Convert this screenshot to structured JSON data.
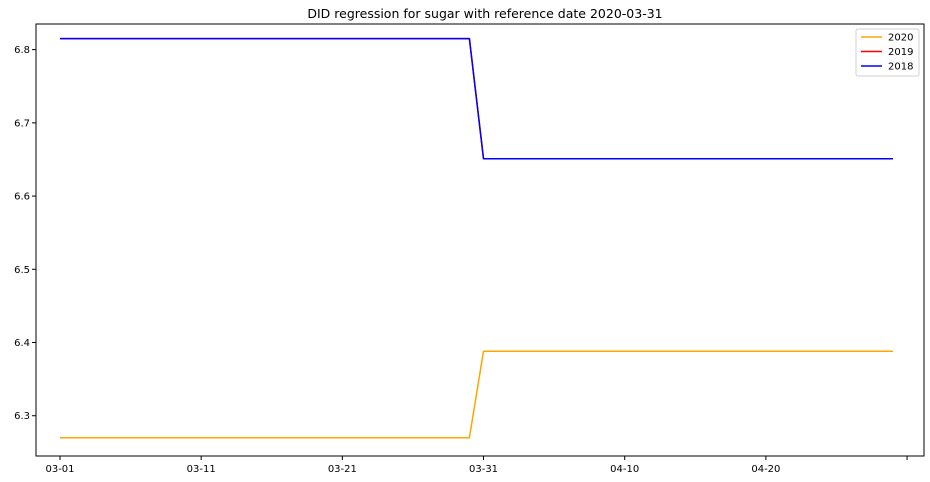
{
  "chart_data": {
    "type": "line",
    "title": "DID regression for sugar with reference date 2020-03-31",
    "xlabel": "",
    "ylabel": "",
    "x_ticks": [
      "03-01",
      "03-11",
      "03-21",
      "03-31",
      "04-10",
      "04-20",
      ""
    ],
    "y_ticks": [
      "6.3",
      "6.4",
      "6.5",
      "6.6",
      "6.7",
      "6.8"
    ],
    "ylim": [
      6.245,
      6.835
    ],
    "xlim_days": [
      -1.7,
      61.2
    ],
    "x_days_note": "days since 03-01",
    "grid": false,
    "legend_position": "top-right",
    "series": [
      {
        "name": "2020",
        "color": "#ffa500",
        "points": [
          [
            0,
            6.27
          ],
          [
            29,
            6.27
          ],
          [
            30,
            6.388
          ],
          [
            59,
            6.388
          ]
        ]
      },
      {
        "name": "2019",
        "color": "#ff0000",
        "points": [
          [
            0,
            6.815
          ],
          [
            29,
            6.815
          ],
          [
            30,
            6.651
          ],
          [
            59,
            6.651
          ]
        ]
      },
      {
        "name": "2018",
        "color": "#0000ff",
        "points": [
          [
            0,
            6.815
          ],
          [
            29,
            6.815
          ],
          [
            30,
            6.651
          ],
          [
            59,
            6.651
          ]
        ]
      }
    ]
  }
}
